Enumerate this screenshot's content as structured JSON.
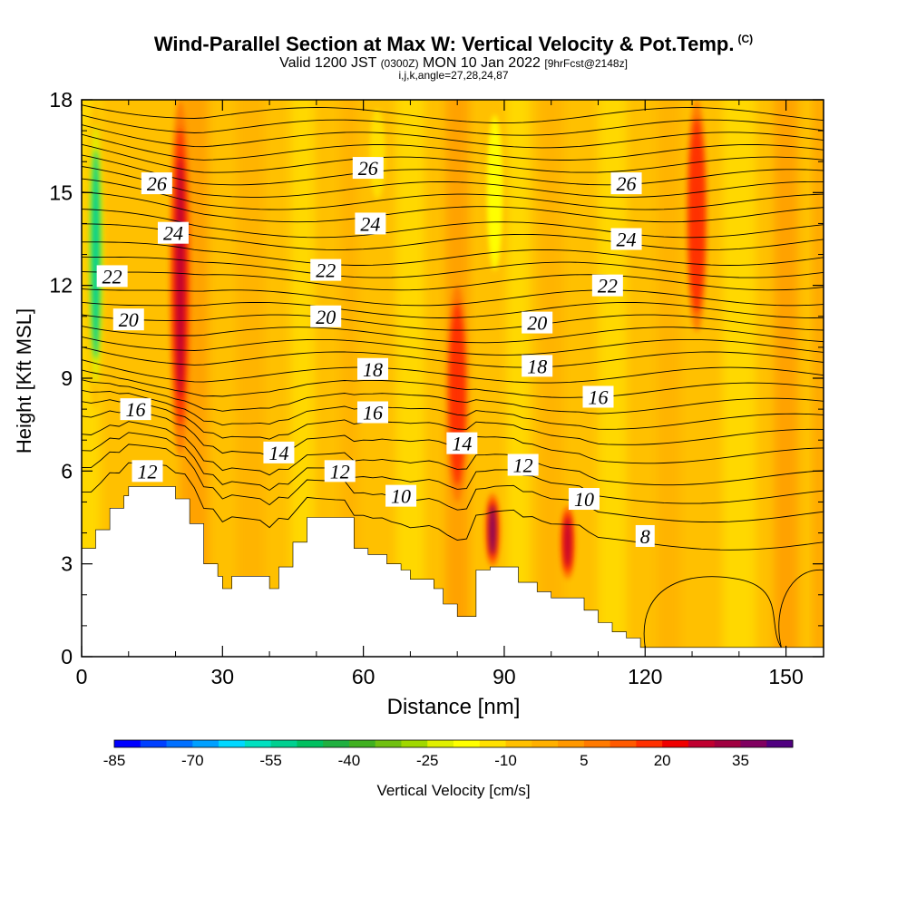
{
  "header": {
    "title": "Wind-Parallel Section at Max W: Vertical Velocity & Pot.Temp.",
    "title_mark": "(C)",
    "subtitle_main": "Valid 1200 JST",
    "subtitle_small1": "(0300Z)",
    "subtitle_date": "MON 10 Jan 2022",
    "subtitle_small2": "[9hrFcst@2148z]",
    "subsub": "i,j,k,angle=27,28,24,87"
  },
  "chart_data": {
    "type": "heatmap",
    "title": "Wind-Parallel Section at Max W: Vertical Velocity & Pot.Temp.",
    "xlabel": "Distance [nm]",
    "ylabel": "Height [Kft MSL]",
    "xlim": [
      0,
      158
    ],
    "ylim": [
      0,
      18
    ],
    "xticks": [
      0,
      30,
      60,
      90,
      120,
      150
    ],
    "yticks": [
      0,
      3,
      6,
      9,
      12,
      15,
      18
    ],
    "colorbar": {
      "label": "Vertical Velocity [cm/s]",
      "tick_labels": [
        "-85",
        "-70",
        "-55",
        "-40",
        "-25",
        "-10",
        "5",
        "20",
        "35"
      ],
      "levels": [
        -85,
        -80,
        -75,
        -70,
        -65,
        -60,
        -55,
        -50,
        -45,
        -40,
        -35,
        -30,
        -25,
        -20,
        -15,
        -10,
        -5,
        0,
        5,
        10,
        15,
        20,
        25,
        30,
        35,
        40
      ],
      "colors": [
        "#0000ff",
        "#0040ff",
        "#0070ff",
        "#00a0ff",
        "#00d8ff",
        "#00e0c0",
        "#00d090",
        "#00c060",
        "#20b040",
        "#40b020",
        "#70c010",
        "#a0d800",
        "#e0f000",
        "#ffff00",
        "#ffe000",
        "#ffc000",
        "#ffb000",
        "#ff9800",
        "#ff7a00",
        "#ff5a00",
        "#ff3000",
        "#f00000",
        "#c00030",
        "#a00040",
        "#800060",
        "#500080"
      ]
    },
    "terrain": [
      [
        0,
        3.5
      ],
      [
        3,
        3.5
      ],
      [
        3,
        4.1
      ],
      [
        6,
        4.1
      ],
      [
        6,
        4.8
      ],
      [
        9,
        4.8
      ],
      [
        9,
        5.2
      ],
      [
        10,
        5.2
      ],
      [
        10,
        5.5
      ],
      [
        20,
        5.5
      ],
      [
        20,
        5.1
      ],
      [
        23,
        5.1
      ],
      [
        23,
        4.3
      ],
      [
        26,
        4.3
      ],
      [
        26,
        3.0
      ],
      [
        29,
        3.0
      ],
      [
        29,
        2.6
      ],
      [
        30,
        2.6
      ],
      [
        30,
        2.2
      ],
      [
        32,
        2.2
      ],
      [
        32,
        2.6
      ],
      [
        40,
        2.6
      ],
      [
        40,
        2.2
      ],
      [
        42,
        2.2
      ],
      [
        42,
        2.9
      ],
      [
        45,
        2.9
      ],
      [
        45,
        3.7
      ],
      [
        48,
        3.7
      ],
      [
        48,
        4.5
      ],
      [
        58,
        4.5
      ],
      [
        58,
        3.5
      ],
      [
        61,
        3.5
      ],
      [
        61,
        3.3
      ],
      [
        65,
        3.3
      ],
      [
        65,
        3.0
      ],
      [
        68,
        3.0
      ],
      [
        68,
        2.8
      ],
      [
        70,
        2.8
      ],
      [
        70,
        2.5
      ],
      [
        75,
        2.5
      ],
      [
        75,
        2.2
      ],
      [
        77,
        2.2
      ],
      [
        77,
        1.7
      ],
      [
        80,
        1.7
      ],
      [
        80,
        1.3
      ],
      [
        84,
        1.3
      ],
      [
        84,
        2.8
      ],
      [
        87,
        2.8
      ],
      [
        87,
        2.9
      ],
      [
        93,
        2.9
      ],
      [
        93,
        2.4
      ],
      [
        97,
        2.4
      ],
      [
        97,
        2.1
      ],
      [
        100,
        2.1
      ],
      [
        100,
        1.9
      ],
      [
        107,
        1.9
      ],
      [
        107,
        1.5
      ],
      [
        110,
        1.5
      ],
      [
        110,
        1.1
      ],
      [
        113,
        1.1
      ],
      [
        113,
        0.8
      ],
      [
        116,
        0.8
      ],
      [
        116,
        0.6
      ],
      [
        119,
        0.6
      ],
      [
        119,
        0.3
      ],
      [
        158,
        0.3
      ]
    ],
    "features": [
      {
        "kind": "updraft_column",
        "x": 21,
        "y_bottom": 6.5,
        "y_top": 18,
        "value": 25
      },
      {
        "kind": "updraft_column",
        "x": 131,
        "y_bottom": 10.5,
        "y_top": 18,
        "value": 15
      },
      {
        "kind": "updraft_column",
        "x": 80,
        "y_bottom": 5,
        "y_top": 12,
        "value": 15
      },
      {
        "kind": "updraft_core",
        "x": 87.5,
        "y_bottom": 2.9,
        "y_top": 5.3,
        "value": 35
      },
      {
        "kind": "updraft_core",
        "x": 103.5,
        "y_bottom": 2.5,
        "y_top": 4.9,
        "value": 25
      },
      {
        "kind": "downdraft_column",
        "x": 3,
        "y_bottom": 8,
        "y_top": 18,
        "value": -55
      },
      {
        "kind": "downdraft_column",
        "x": 63,
        "y_bottom": 14.5,
        "y_top": 18,
        "value": -15
      },
      {
        "kind": "downdraft_column",
        "x": 88,
        "y_bottom": 12,
        "y_top": 18,
        "value": -20
      }
    ],
    "contours": {
      "field": "Potential Temperature",
      "labeled_levels": [
        {
          "label": "26",
          "x": 16,
          "y": 15.3
        },
        {
          "label": "26",
          "x": 61,
          "y": 15.8
        },
        {
          "label": "26",
          "x": 116,
          "y": 15.3
        },
        {
          "label": "24",
          "x": 19.5,
          "y": 13.7
        },
        {
          "label": "24",
          "x": 61.5,
          "y": 14.0
        },
        {
          "label": "24",
          "x": 116,
          "y": 13.5
        },
        {
          "label": "22",
          "x": 6.5,
          "y": 12.3
        },
        {
          "label": "22",
          "x": 52,
          "y": 12.5
        },
        {
          "label": "22",
          "x": 112,
          "y": 12.0
        },
        {
          "label": "20",
          "x": 10,
          "y": 10.9
        },
        {
          "label": "20",
          "x": 52,
          "y": 11.0
        },
        {
          "label": "20",
          "x": 97,
          "y": 10.8
        },
        {
          "label": "18",
          "x": 62,
          "y": 9.3
        },
        {
          "label": "18",
          "x": 97,
          "y": 9.4
        },
        {
          "label": "16",
          "x": 11.5,
          "y": 8.0
        },
        {
          "label": "16",
          "x": 62,
          "y": 7.9
        },
        {
          "label": "16",
          "x": 110,
          "y": 8.4
        },
        {
          "label": "14",
          "x": 42,
          "y": 6.6
        },
        {
          "label": "14",
          "x": 81,
          "y": 6.9
        },
        {
          "label": "12",
          "x": 14,
          "y": 6.0
        },
        {
          "label": "12",
          "x": 55,
          "y": 6.0
        },
        {
          "label": "12",
          "x": 94,
          "y": 6.2
        },
        {
          "label": "10",
          "x": 68,
          "y": 5.2
        },
        {
          "label": "10",
          "x": 107,
          "y": 5.1
        },
        {
          "label": "8",
          "x": 120,
          "y": 3.9
        }
      ],
      "line_heights_far_right": [
        3.7,
        4.6,
        5.2,
        5.8,
        6.5,
        7.1,
        7.6,
        8.1,
        8.6,
        9.1,
        9.6,
        10.0,
        10.4,
        10.8,
        11.2,
        11.6,
        12.1,
        12.5,
        12.9,
        13.4,
        13.8,
        14.3,
        14.7,
        15.1,
        15.5,
        15.9,
        16.3,
        16.7,
        17.1,
        17.5
      ]
    }
  }
}
